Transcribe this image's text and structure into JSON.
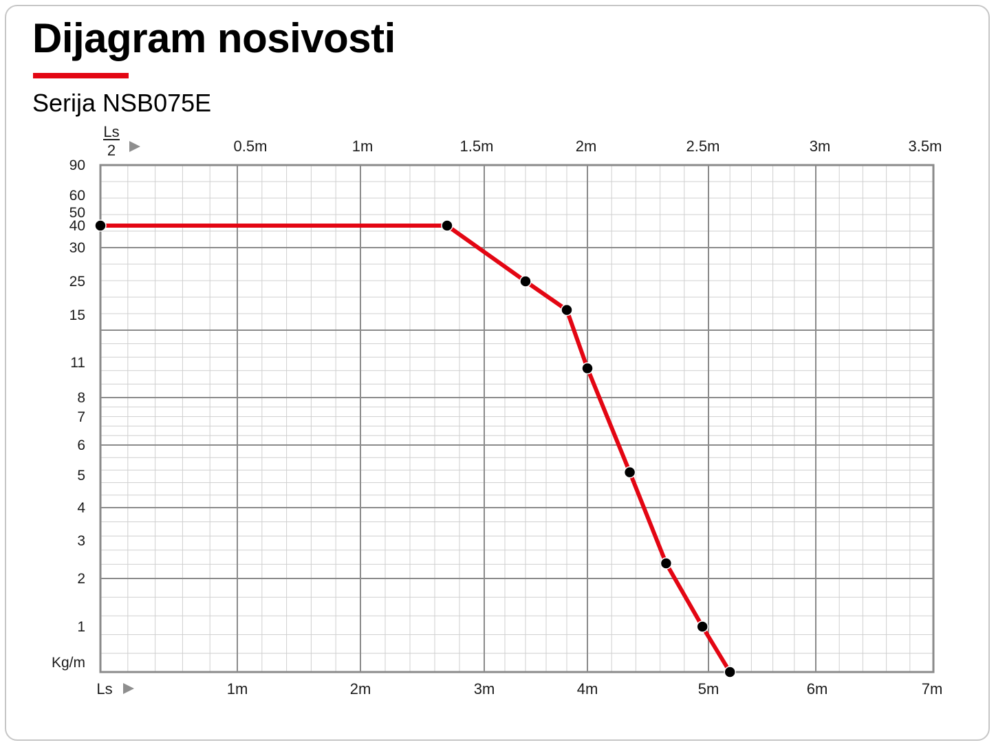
{
  "title": "Dijagram nosivosti",
  "subtitle": "Serija NSB075E",
  "colors": {
    "accent": "#e30613",
    "line": "#e30613",
    "marker": "#000000",
    "grid_major": "#8a8a8a",
    "grid_minor": "#cfcfcf"
  },
  "chart_data": {
    "type": "line",
    "title": "Dijagram nosivosti",
    "subtitle": "Serija NSB075E",
    "grid": true,
    "y_unit_label": "Kg/m",
    "y_ticks": [
      "90",
      "60",
      "50",
      "40",
      "30",
      "25",
      "15",
      "11",
      "8",
      "7",
      "6",
      "5",
      "4",
      "3",
      "2",
      "1"
    ],
    "x_bottom_label": "Ls",
    "x_bottom_ticks": [
      "1m",
      "2m",
      "3m",
      "4m",
      "5m",
      "6m",
      "7m"
    ],
    "x_top_label_num": "Ls",
    "x_top_label_den": "2",
    "x_top_ticks": [
      "0.5m",
      "1m",
      "1.5m",
      "2m",
      "2.5m",
      "3m",
      "3.5m"
    ],
    "series": [
      {
        "x": [
          0,
          2.7,
          3.4,
          3.8,
          4.0,
          4.35,
          4.65,
          4.95,
          5.2
        ],
        "y": [
          40,
          40,
          25,
          16.5,
          10.5,
          5.1,
          2.4,
          1,
          0
        ]
      }
    ]
  }
}
